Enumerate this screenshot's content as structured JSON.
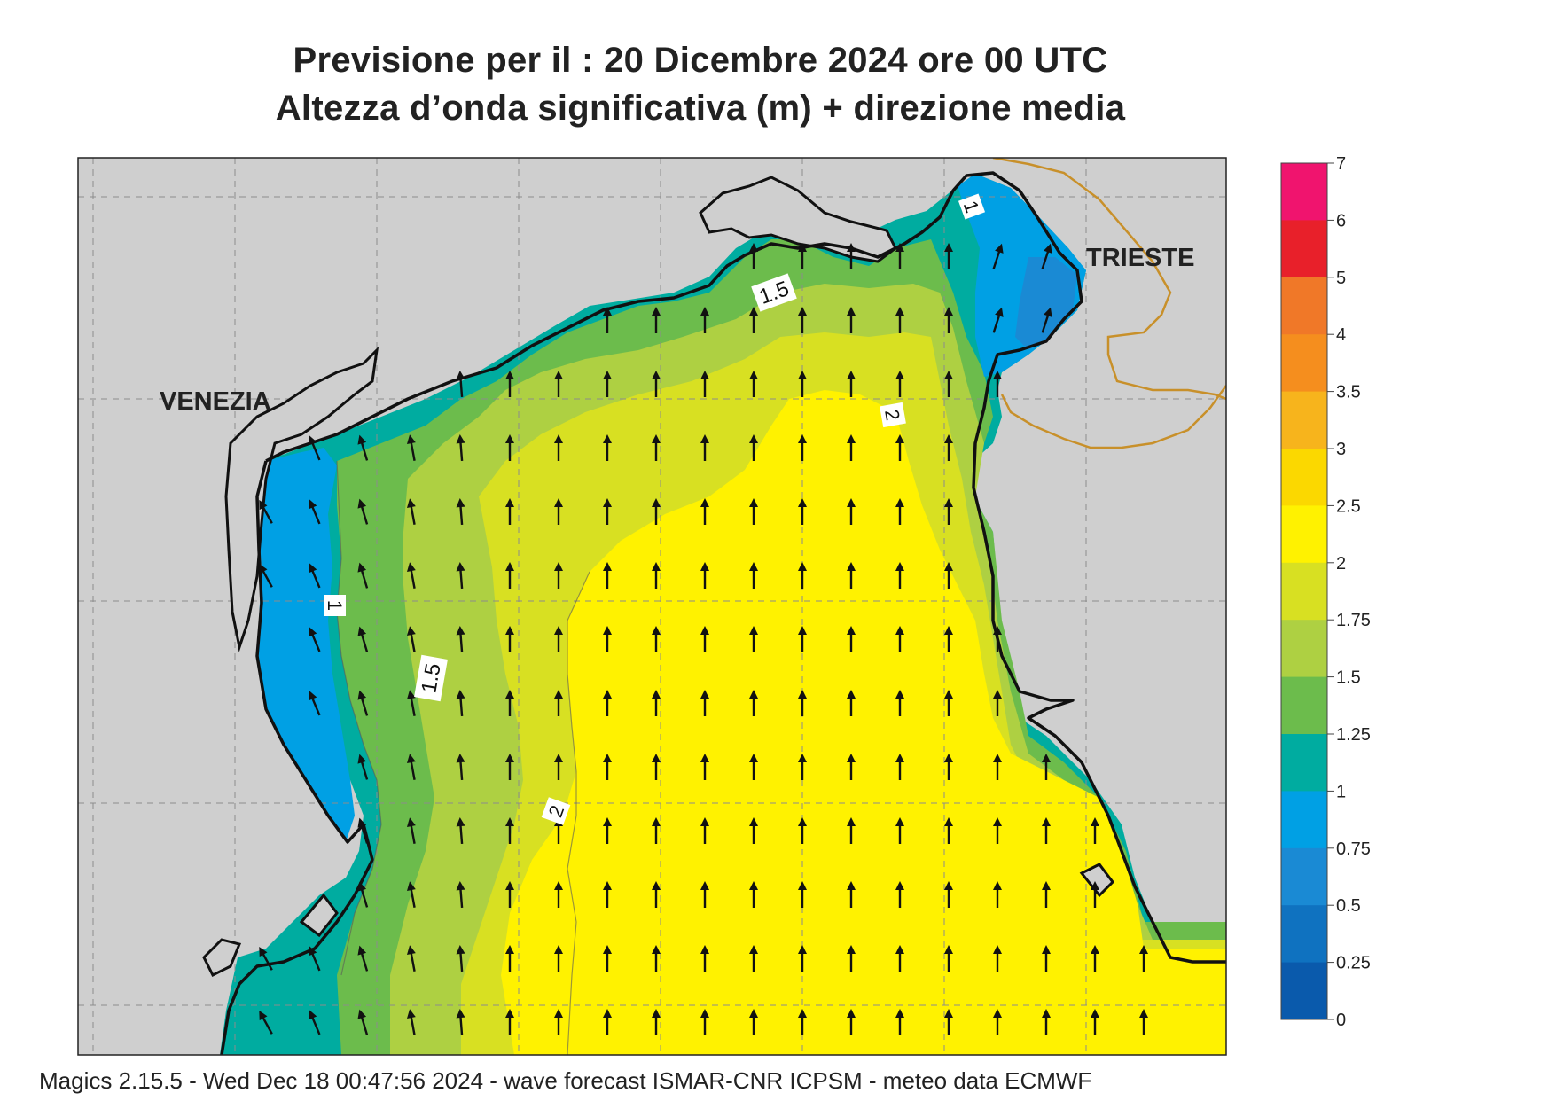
{
  "header": {
    "line1": "Previsione per il  :  20 Dicembre  2024   ore 00 UTC",
    "line2": "Altezza d’onda significativa (m) + direzione media"
  },
  "map": {
    "cities": [
      {
        "name": "VENEZIA"
      },
      {
        "name": "TRIESTE"
      }
    ],
    "contour_labels": [
      "1",
      "1.5",
      "2",
      "1",
      "1.5",
      "2"
    ],
    "arrow_direction": "north",
    "land_color": "#cfcfcf",
    "coast_color": "#111111",
    "border_color": "#c8902a"
  },
  "legend": {
    "ticks": [
      "7",
      "6",
      "5",
      "4",
      "3.5",
      "3",
      "2.5",
      "2",
      "1.75",
      "1.5",
      "1.25",
      "1",
      "0.75",
      "0.5",
      "0.25",
      "0"
    ],
    "colors": [
      "#f0146e",
      "#e8202a",
      "#f07828",
      "#f58e1e",
      "#f7b41c",
      "#fbd800",
      "#fff200",
      "#d8e022",
      "#aed042",
      "#6cbc4c",
      "#00aca0",
      "#00a0e4",
      "#1a8ad4",
      "#0f72c0",
      "#0a5aac"
    ]
  },
  "footer": {
    "text": "Magics 2.15.5 - Wed Dec 18 00:47:56 2024 - wave forecast  ISMAR-CNR  ICPSM - meteo data     ECMWF"
  }
}
